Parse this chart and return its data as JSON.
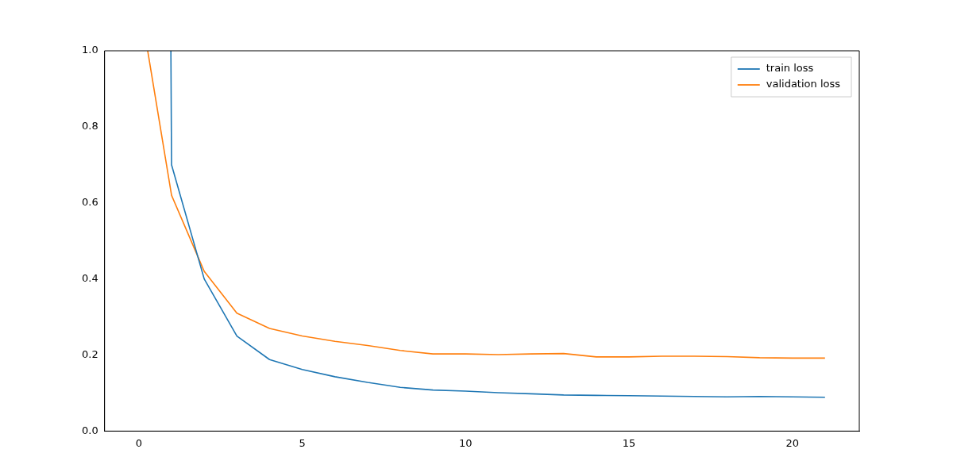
{
  "chart_data": {
    "type": "line",
    "series": [
      {
        "name": "train loss",
        "color": "#1f77b4",
        "x": [
          0.98,
          1,
          2,
          3,
          4,
          5,
          6,
          7,
          8,
          9,
          10,
          11,
          12,
          13,
          14,
          15,
          16,
          17,
          18,
          19,
          20,
          21
        ],
        "values": [
          1.0,
          0.7,
          0.4,
          0.25,
          0.188,
          0.162,
          0.143,
          0.128,
          0.115,
          0.108,
          0.105,
          0.101,
          0.098,
          0.095,
          0.094,
          0.093,
          0.092,
          0.091,
          0.09,
          0.091,
          0.09,
          0.089
        ]
      },
      {
        "name": "validation loss",
        "color": "#ff7f0e",
        "x": [
          0.27,
          1,
          2,
          3,
          4,
          5,
          6,
          7,
          8,
          9,
          10,
          11,
          12,
          13,
          14,
          15,
          16,
          17,
          18,
          19,
          20,
          21
        ],
        "values": [
          1.0,
          0.62,
          0.42,
          0.31,
          0.27,
          0.25,
          0.236,
          0.225,
          0.212,
          0.203,
          0.203,
          0.201,
          0.203,
          0.204,
          0.195,
          0.195,
          0.197,
          0.197,
          0.196,
          0.193,
          0.192,
          0.192
        ]
      }
    ],
    "xlim": [
      -1.05,
      22.05
    ],
    "xticks": [
      0,
      5,
      10,
      15,
      20
    ],
    "ylim": [
      0,
      1
    ],
    "yticks": [
      {
        "value": 0,
        "label": "0.0"
      },
      {
        "value": 0.2,
        "label": "0.2"
      },
      {
        "value": 0.4,
        "label": "0.4"
      },
      {
        "value": 0.6,
        "label": "0.6"
      },
      {
        "value": 0.8,
        "label": "0.8"
      },
      {
        "value": 1,
        "label": "1.0"
      }
    ],
    "grid": false,
    "legend": "top right",
    "line_style": "solid",
    "marker": "none"
  }
}
